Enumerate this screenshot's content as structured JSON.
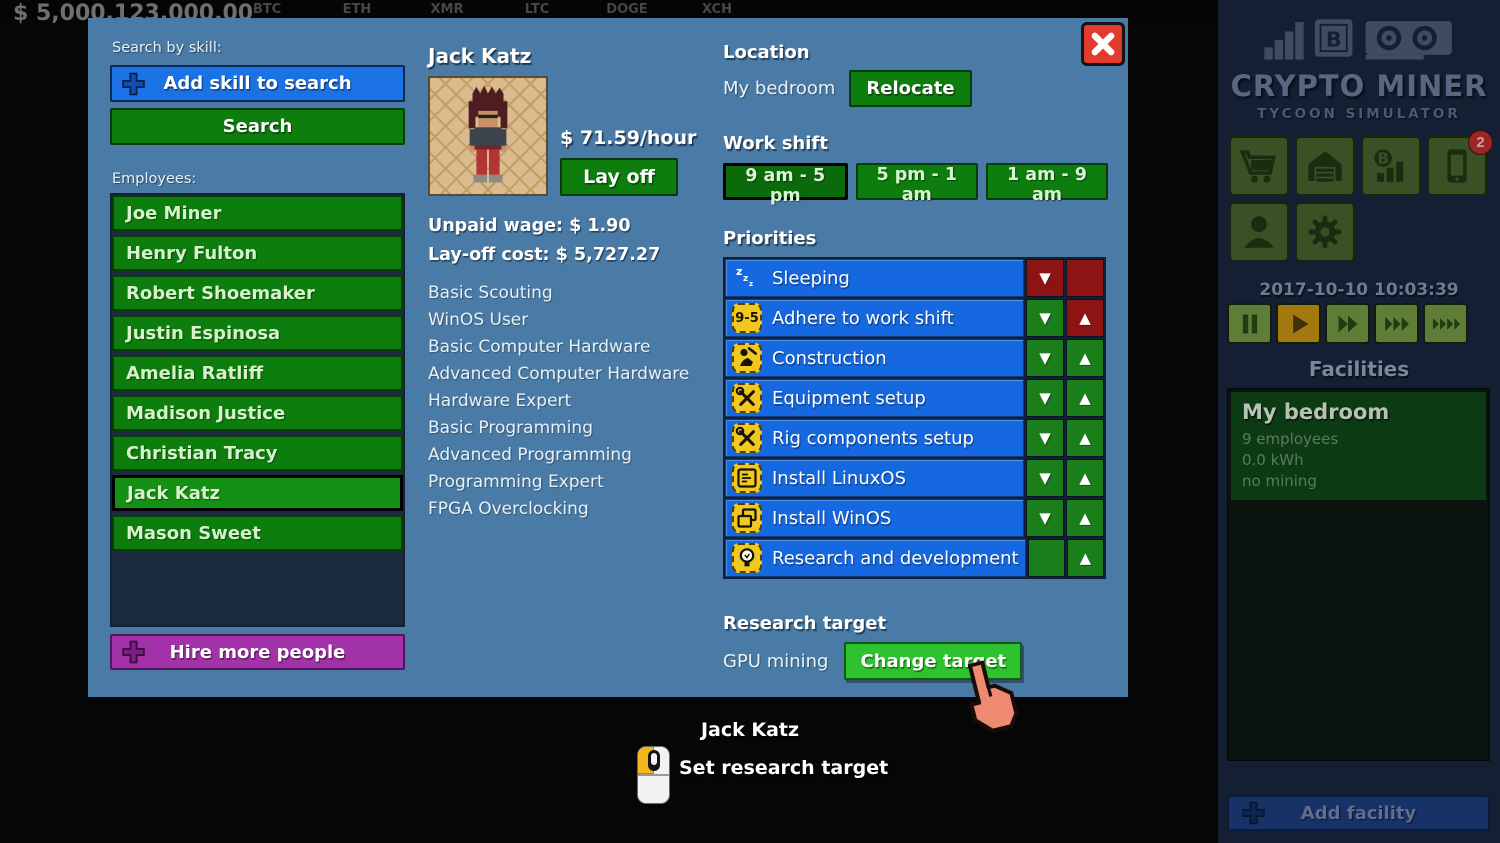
{
  "top_bar": {
    "money": "$ 5,000,123,000.00",
    "tickers": [
      "BTC",
      "ETH",
      "XMR",
      "LTC",
      "DOGE",
      "XCH"
    ]
  },
  "panel": {
    "search_label": "Search by skill:",
    "add_skill_button": "Add skill to search",
    "search_button": "Search",
    "employees_label": "Employees:",
    "employees": [
      "Joe Miner",
      "Henry Fulton",
      "Robert Shoemaker",
      "Justin Espinosa",
      "Amelia Ratliff",
      "Madison Justice",
      "Christian Tracy",
      "Jack Katz",
      "Mason Sweet"
    ],
    "selected_employee": "Jack Katz",
    "hire_button": "Hire more people",
    "detail": {
      "name": "Jack Katz",
      "wage": "$ 71.59/hour",
      "layoff_button": "Lay off",
      "unpaid_wage": "Unpaid wage: $ 1.90",
      "layoff_cost": "Lay-off cost: $ 5,727.27",
      "skills": [
        "Basic Scouting",
        "WinOS User",
        "Basic Computer Hardware",
        "Advanced Computer Hardware",
        "Hardware Expert",
        "Basic Programming",
        "Advanced Programming",
        "Programming Expert",
        "FPGA Overclocking"
      ]
    },
    "location": {
      "label": "Location",
      "value": "My bedroom",
      "relocate_button": "Relocate"
    },
    "work_shift": {
      "label": "Work shift",
      "options": [
        "9 am - 5 pm",
        "5 pm - 1 am",
        "1 am - 9 am"
      ],
      "selected": "9 am - 5 pm"
    },
    "priorities": {
      "label": "Priorities",
      "items": [
        {
          "label": "Sleeping",
          "icon": "sleep-icon",
          "down_color": "red",
          "down_arrow": true,
          "up_color": "red",
          "up_arrow": false
        },
        {
          "label": "Adhere to work shift",
          "icon": "workshift-icon",
          "down_color": "green",
          "down_arrow": true,
          "up_color": "red",
          "up_arrow": true
        },
        {
          "label": "Construction",
          "icon": "construction-icon",
          "down_color": "green",
          "down_arrow": true,
          "up_color": "green",
          "up_arrow": true
        },
        {
          "label": "Equipment setup",
          "icon": "tools-icon",
          "down_color": "green",
          "down_arrow": true,
          "up_color": "green",
          "up_arrow": true
        },
        {
          "label": "Rig components setup",
          "icon": "tools-icon",
          "down_color": "green",
          "down_arrow": true,
          "up_color": "green",
          "up_arrow": true
        },
        {
          "label": "Install LinuxOS",
          "icon": "linux-icon",
          "down_color": "green",
          "down_arrow": true,
          "up_color": "green",
          "up_arrow": true
        },
        {
          "label": "Install WinOS",
          "icon": "windows-icon",
          "down_color": "green",
          "down_arrow": true,
          "up_color": "green",
          "up_arrow": true
        },
        {
          "label": "Research and development",
          "icon": "bulb-icon",
          "down_color": "green",
          "down_arrow": false,
          "up_color": "green",
          "up_arrow": true
        }
      ]
    },
    "research": {
      "label": "Research target",
      "value": "GPU mining",
      "change_button": "Change target"
    }
  },
  "tooltip": {
    "name": "Jack Katz",
    "action": "Set research target"
  },
  "sidebar": {
    "logo_title": "CRYPTO MINER",
    "logo_subtitle": "TYCOON SIMULATOR",
    "phone_badge": "2",
    "datetime": "2017-10-10 10:03:39",
    "facilities_label": "Facilities",
    "facility": {
      "name": "My bedroom",
      "employees": "9 employees",
      "power": "0.0 kWh",
      "mining": "no mining"
    },
    "add_facility_button": "Add facility"
  },
  "colors": {
    "panel_blue": "#4a7ba7",
    "priority_blue": "#1668e0",
    "button_green": "#0d7d0d",
    "bright_green": "#2ec32e",
    "danger_red": "#8e1414",
    "purple": "#a232a8",
    "close_red": "#e23b2e",
    "badge_yellow": "#f0c820",
    "sidebar_navy": "#141f33"
  }
}
